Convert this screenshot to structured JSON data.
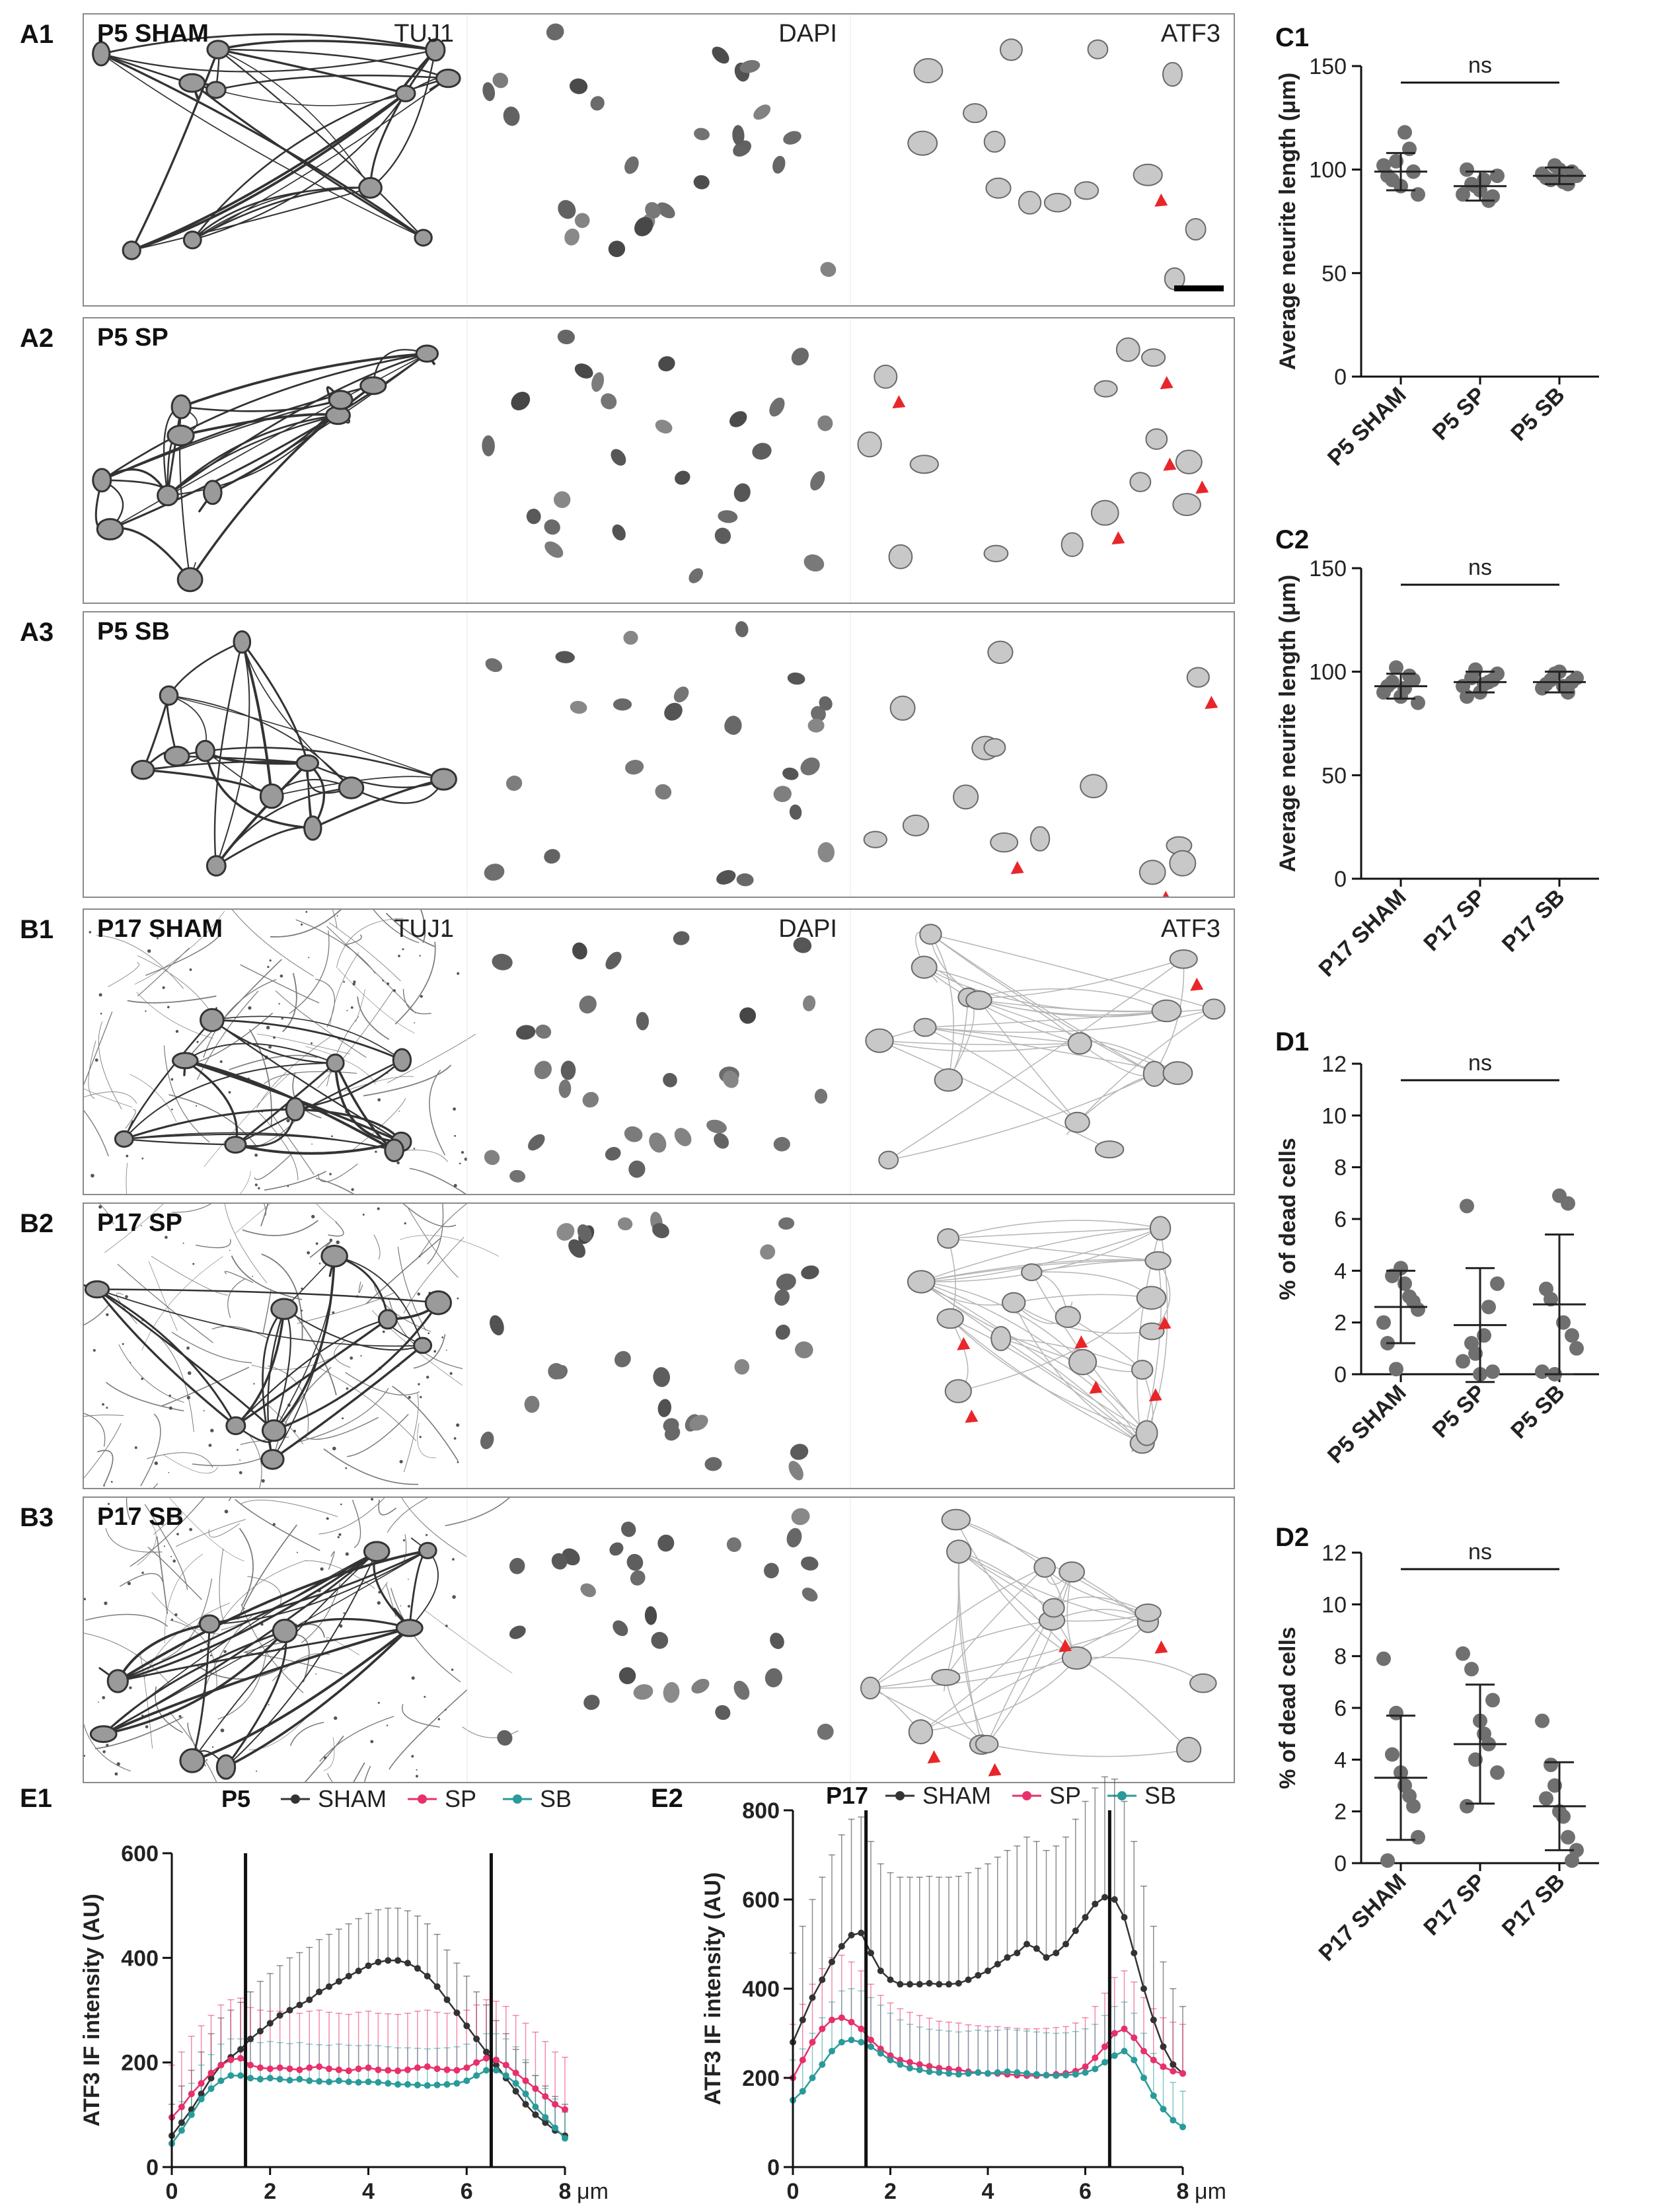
{
  "micrographs": {
    "panels_a": [
      {
        "letter": "A1",
        "condition": "P5 SHAM",
        "stains": [
          "TUJ1",
          "DAPI",
          "ATF3"
        ]
      },
      {
        "letter": "A2",
        "condition": "P5 SP",
        "stains": [
          "",
          "",
          ""
        ]
      },
      {
        "letter": "A3",
        "condition": "P5 SB",
        "stains": [
          "",
          "",
          ""
        ]
      }
    ],
    "panels_b": [
      {
        "letter": "B1",
        "condition": "P17 SHAM",
        "stains": [
          "TUJ1",
          "DAPI",
          "ATF3"
        ]
      },
      {
        "letter": "B2",
        "condition": "P17 SP",
        "stains": [
          "",
          "",
          ""
        ]
      },
      {
        "letter": "B3",
        "condition": "P17 SB",
        "stains": [
          "",
          "",
          ""
        ]
      }
    ],
    "arrow_color": "#e8262a"
  },
  "chart_data": [
    {
      "id": "C1",
      "type": "scatter",
      "ylabel": "Average neurite length (μm)",
      "ylim": [
        0,
        150
      ],
      "yticks": [
        0,
        50,
        100,
        150
      ],
      "categories": [
        "P5 SHAM",
        "P5 SP",
        "P5 SB"
      ],
      "annotation": "ns",
      "points": [
        [
          102,
          95,
          92,
          110,
          88,
          97,
          104,
          118,
          99
        ],
        [
          88,
          93,
          90,
          85,
          97,
          100,
          92,
          95,
          87
        ],
        [
          98,
          95,
          100,
          93,
          97,
          96,
          102,
          94,
          99
        ]
      ],
      "mean": [
        99,
        92,
        97
      ],
      "sd": [
        9,
        7,
        4
      ]
    },
    {
      "id": "C2",
      "type": "scatter",
      "ylabel": "Average neurite length (μm)",
      "ylim": [
        0,
        150
      ],
      "yticks": [
        0,
        50,
        100,
        150
      ],
      "categories": [
        "P17 SHAM",
        "P17 SP",
        "P17 SB"
      ],
      "annotation": "ns",
      "points": [
        [
          90,
          95,
          88,
          98,
          85,
          93,
          102,
          92,
          96
        ],
        [
          93,
          97,
          90,
          95,
          99,
          88,
          101,
          94,
          96
        ],
        [
          92,
          96,
          100,
          90,
          97,
          94,
          99,
          93,
          95
        ]
      ],
      "mean": [
        93,
        95,
        95
      ],
      "sd": [
        6,
        5,
        5
      ]
    },
    {
      "id": "D1",
      "type": "scatter",
      "ylabel": "% of dead cells",
      "ylim": [
        0,
        12
      ],
      "yticks": [
        0,
        2,
        4,
        6,
        8,
        10,
        12
      ],
      "categories": [
        "P5 SHAM",
        "P5 SP",
        "P5 SB"
      ],
      "annotation": "ns",
      "points": [
        [
          2.0,
          3.8,
          4.1,
          3.0,
          2.5,
          1.2,
          0.2,
          3.5,
          2.8
        ],
        [
          0.5,
          1.2,
          0,
          2.6,
          3.5,
          6.5,
          0.8,
          1.5,
          0.1
        ],
        [
          0.1,
          2.9,
          6.9,
          6.6,
          1.0,
          3.3,
          0,
          2.0,
          1.5
        ]
      ],
      "mean": [
        2.6,
        1.9,
        2.7
      ],
      "sd": [
        1.4,
        2.2,
        2.7
      ]
    },
    {
      "id": "D2",
      "type": "scatter",
      "ylabel": "% of dead cells",
      "ylim": [
        0,
        12
      ],
      "yticks": [
        0,
        2,
        4,
        6,
        8,
        10,
        12
      ],
      "categories": [
        "P17 SHAM",
        "P17 SP",
        "P17 SB"
      ],
      "annotation": "ns",
      "points": [
        [
          7.9,
          4.2,
          3.5,
          2.6,
          1.0,
          0.1,
          5.8,
          3.0,
          2.2
        ],
        [
          8.1,
          7.5,
          5.5,
          4.6,
          3.5,
          2.2,
          4.0,
          5.0,
          6.3
        ],
        [
          5.5,
          3.8,
          2.0,
          1.0,
          0.5,
          2.5,
          3.0,
          1.8,
          0.1
        ]
      ],
      "mean": [
        3.3,
        4.6,
        2.2
      ],
      "sd": [
        2.4,
        2.3,
        1.7
      ]
    },
    {
      "id": "E1",
      "type": "line",
      "title": "P5",
      "ylabel": "ATF3 IF intensity (AU)",
      "xunit": "μm",
      "xlim": [
        0,
        8
      ],
      "ylim": [
        0,
        600
      ],
      "xticks": [
        0,
        2,
        4,
        6,
        8
      ],
      "yticks": [
        0,
        200,
        400,
        600
      ],
      "vlines": [
        1.5,
        6.5
      ],
      "x": [
        0,
        0.2,
        0.4,
        0.6,
        0.8,
        1.0,
        1.2,
        1.4,
        1.6,
        1.8,
        2.0,
        2.2,
        2.4,
        2.6,
        2.8,
        3.0,
        3.2,
        3.4,
        3.6,
        3.8,
        4.0,
        4.2,
        4.4,
        4.6,
        4.8,
        5.0,
        5.2,
        5.4,
        5.6,
        5.8,
        6.0,
        6.2,
        6.4,
        6.6,
        6.8,
        7.0,
        7.2,
        7.4,
        7.6,
        7.8,
        8.0
      ],
      "series": [
        {
          "name": "SHAM",
          "color": "#333333",
          "values": [
            60,
            85,
            110,
            140,
            170,
            195,
            210,
            225,
            245,
            260,
            275,
            290,
            300,
            310,
            320,
            335,
            345,
            355,
            365,
            375,
            385,
            392,
            395,
            395,
            390,
            380,
            365,
            345,
            320,
            295,
            270,
            245,
            220,
            195,
            170,
            145,
            120,
            100,
            85,
            70,
            60
          ],
          "err": [
            60,
            70,
            75,
            80,
            85,
            90,
            90,
            90,
            90,
            95,
            95,
            95,
            100,
            100,
            100,
            100,
            100,
            100,
            100,
            100,
            100,
            100,
            100,
            100,
            100,
            100,
            100,
            100,
            95,
            95,
            95,
            90,
            90,
            85,
            85,
            80,
            80,
            75,
            70,
            65,
            60
          ]
        },
        {
          "name": "SP",
          "color": "#e8306b",
          "values": [
            95,
            115,
            140,
            160,
            180,
            195,
            205,
            208,
            195,
            190,
            188,
            190,
            188,
            186,
            190,
            192,
            188,
            186,
            184,
            188,
            190,
            186,
            185,
            184,
            186,
            190,
            192,
            188,
            186,
            185,
            190,
            200,
            208,
            205,
            195,
            180,
            165,
            150,
            135,
            120,
            110
          ],
          "err": [
            100,
            105,
            110,
            110,
            110,
            115,
            115,
            115,
            110,
            110,
            110,
            108,
            108,
            108,
            108,
            108,
            108,
            108,
            108,
            108,
            108,
            108,
            108,
            108,
            108,
            108,
            108,
            108,
            108,
            110,
            110,
            110,
            112,
            112,
            112,
            110,
            110,
            108,
            105,
            100,
            100
          ]
        },
        {
          "name": "SB",
          "color": "#2a9a9a",
          "values": [
            45,
            70,
            100,
            130,
            150,
            165,
            175,
            175,
            170,
            168,
            170,
            168,
            166,
            168,
            165,
            164,
            163,
            165,
            163,
            162,
            163,
            162,
            160,
            158,
            158,
            157,
            156,
            157,
            158,
            160,
            165,
            175,
            185,
            185,
            175,
            160,
            140,
            115,
            95,
            75,
            55
          ],
          "err": [
            50,
            55,
            60,
            65,
            65,
            70,
            70,
            70,
            70,
            70,
            70,
            70,
            70,
            70,
            70,
            70,
            70,
            70,
            70,
            70,
            70,
            70,
            70,
            70,
            70,
            70,
            70,
            70,
            70,
            70,
            70,
            70,
            70,
            70,
            70,
            70,
            65,
            60,
            55,
            55,
            50
          ]
        }
      ],
      "legend": "top"
    },
    {
      "id": "E2",
      "type": "line",
      "title": "P17",
      "ylabel": "ATF3 IF intensity (AU)",
      "xunit": "μm",
      "xlim": [
        0,
        8
      ],
      "ylim": [
        0,
        800
      ],
      "xticks": [
        0,
        2,
        4,
        6,
        8
      ],
      "yticks": [
        0,
        200,
        400,
        600,
        800
      ],
      "vlines": [
        1.5,
        6.5
      ],
      "x": [
        0,
        0.2,
        0.4,
        0.6,
        0.8,
        1.0,
        1.2,
        1.4,
        1.6,
        1.8,
        2.0,
        2.2,
        2.4,
        2.6,
        2.8,
        3.0,
        3.2,
        3.4,
        3.6,
        3.8,
        4.0,
        4.2,
        4.4,
        4.6,
        4.8,
        5.0,
        5.2,
        5.4,
        5.6,
        5.8,
        6.0,
        6.2,
        6.4,
        6.6,
        6.8,
        7.0,
        7.2,
        7.4,
        7.6,
        7.8,
        8.0
      ],
      "series": [
        {
          "name": "SHAM",
          "color": "#333333",
          "values": [
            280,
            330,
            380,
            420,
            460,
            495,
            520,
            525,
            480,
            440,
            420,
            410,
            410,
            410,
            412,
            410,
            410,
            412,
            420,
            430,
            440,
            455,
            470,
            480,
            500,
            490,
            470,
            480,
            500,
            530,
            560,
            590,
            605,
            600,
            560,
            480,
            400,
            330,
            270,
            230,
            210
          ],
          "err": [
            200,
            210,
            220,
            230,
            240,
            250,
            260,
            260,
            250,
            240,
            240,
            240,
            240,
            240,
            240,
            240,
            240,
            240,
            240,
            240,
            240,
            240,
            240,
            240,
            240,
            240,
            240,
            240,
            240,
            250,
            260,
            260,
            270,
            270,
            260,
            250,
            230,
            210,
            190,
            170,
            150
          ]
        },
        {
          "name": "SP",
          "color": "#e8306b",
          "values": [
            200,
            240,
            280,
            310,
            330,
            335,
            325,
            310,
            285,
            265,
            250,
            240,
            235,
            230,
            226,
            222,
            220,
            218,
            214,
            212,
            210,
            210,
            208,
            206,
            205,
            205,
            206,
            208,
            210,
            215,
            225,
            245,
            270,
            300,
            310,
            290,
            260,
            240,
            225,
            215,
            210
          ],
          "err": [
            120,
            125,
            130,
            135,
            140,
            140,
            135,
            130,
            125,
            120,
            118,
            115,
            112,
            110,
            108,
            105,
            105,
            105,
            105,
            105,
            105,
            105,
            105,
            105,
            105,
            105,
            105,
            105,
            105,
            108,
            110,
            115,
            120,
            125,
            130,
            125,
            120,
            115,
            110,
            110,
            110
          ]
        },
        {
          "name": "SB",
          "color": "#2a9a9a",
          "values": [
            150,
            170,
            200,
            230,
            260,
            280,
            285,
            280,
            270,
            255,
            240,
            230,
            222,
            218,
            214,
            212,
            210,
            208,
            210,
            212,
            210,
            212,
            214,
            212,
            210,
            208,
            206,
            205,
            206,
            208,
            212,
            220,
            235,
            250,
            260,
            240,
            200,
            160,
            130,
            105,
            90
          ],
          "err": [
            90,
            95,
            100,
            105,
            110,
            115,
            115,
            115,
            110,
            108,
            105,
            100,
            98,
            96,
            95,
            95,
            95,
            95,
            95,
            95,
            95,
            95,
            95,
            95,
            95,
            95,
            95,
            95,
            95,
            96,
            98,
            100,
            105,
            110,
            110,
            105,
            100,
            95,
            90,
            85,
            80
          ]
        }
      ],
      "legend": "top"
    }
  ]
}
